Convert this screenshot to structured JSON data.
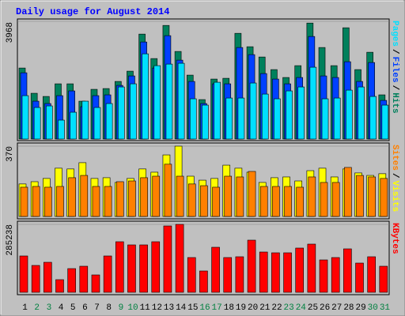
{
  "chart_data": [
    {
      "type": "bar",
      "title": "Daily usage for August 2014",
      "categories": [
        "1",
        "2",
        "3",
        "4",
        "5",
        "6",
        "7",
        "8",
        "9",
        "10",
        "11",
        "12",
        "13",
        "14",
        "15",
        "16",
        "17",
        "18",
        "19",
        "20",
        "21",
        "22",
        "23",
        "24",
        "25",
        "26",
        "27",
        "28",
        "29",
        "30",
        "31"
      ],
      "category_colors": [
        "#000000",
        "#008040",
        "#008040",
        "#000000",
        "#000000",
        "#000000",
        "#000000",
        "#000000",
        "#008040",
        "#008040",
        "#000000",
        "#000000",
        "#000000",
        "#000000",
        "#000000",
        "#008040",
        "#008040",
        "#000000",
        "#000000",
        "#000000",
        "#000000",
        "#000000",
        "#008040",
        "#008040",
        "#000000",
        "#000000",
        "#000000",
        "#000000",
        "#000000",
        "#008040",
        "#008040"
      ],
      "ylim": [
        0,
        3968
      ],
      "yticks": [
        3968
      ],
      "legend_separator": "/",
      "series": [
        {
          "name": "Hits",
          "color": "#00805c",
          "values": [
            2394,
            1543,
            1436,
            1862,
            1862,
            1277,
            1676,
            1702,
            1942,
            2288,
            3538,
            2713,
            3830,
            2953,
            2155,
            1330,
            2022,
            2048,
            3564,
            3112,
            2766,
            2341,
            2075,
            2474,
            3910,
            3086,
            2474,
            3751,
            2341,
            2926,
            1490
          ]
        },
        {
          "name": "Files",
          "color": "#0040ff",
          "values": [
            2234,
            1277,
            1197,
            1463,
            1623,
            1091,
            1463,
            1490,
            1809,
            2128,
            3272,
            2394,
            3485,
            2660,
            1942,
            1197,
            1862,
            1862,
            3086,
            2846,
            2208,
            2022,
            1862,
            2075,
            3458,
            2128,
            2075,
            2607,
            1942,
            2580,
            1303
          ]
        },
        {
          "name": "Pages",
          "color": "#00e0ff",
          "values": [
            1463,
            1064,
            1117,
            638,
            904,
            1277,
            1064,
            1197,
            1756,
            1862,
            2873,
            2474,
            2527,
            2554,
            1357,
            1144,
            1915,
            1383,
            1383,
            1889,
            1516,
            1357,
            1623,
            1756,
            2421,
            1357,
            1383,
            1649,
            1756,
            1436,
            1144
          ]
        }
      ]
    },
    {
      "type": "bar",
      "ylim": [
        0,
        370
      ],
      "yticks": [
        370
      ],
      "legend_separator": "/",
      "series": [
        {
          "name": "Visits",
          "color": "#ffff00",
          "values": [
            171,
            183,
            200,
            254,
            250,
            283,
            200,
            204,
            179,
            200,
            250,
            233,
            324,
            370,
            212,
            191,
            200,
            270,
            254,
            233,
            179,
            204,
            208,
            187,
            241,
            254,
            208,
            250,
            229,
            216,
            225
          ]
        },
        {
          "name": "Sites",
          "color": "#ff8000",
          "values": [
            154,
            158,
            154,
            158,
            204,
            216,
            158,
            158,
            183,
            187,
            204,
            212,
            275,
            212,
            171,
            162,
            154,
            212,
            208,
            237,
            158,
            158,
            158,
            154,
            208,
            179,
            179,
            258,
            216,
            208,
            200
          ]
        }
      ]
    },
    {
      "type": "bar",
      "ylim": [
        0,
        285238
      ],
      "yticks": [
        285238
      ],
      "series": [
        {
          "name": "KBytes",
          "color": "#ff0000",
          "values": [
            152582,
            112778,
            126046,
            53072,
            99510,
            109461,
            72974,
            152582,
            212288,
            199020,
            199020,
            212288,
            278628,
            285238,
            145948,
            89559,
            189069,
            145948,
            149265,
            218922,
            169167,
            165850,
            165850,
            185752,
            202337,
            135997,
            145948,
            182435,
            122729,
            149265,
            109461
          ]
        }
      ]
    }
  ]
}
